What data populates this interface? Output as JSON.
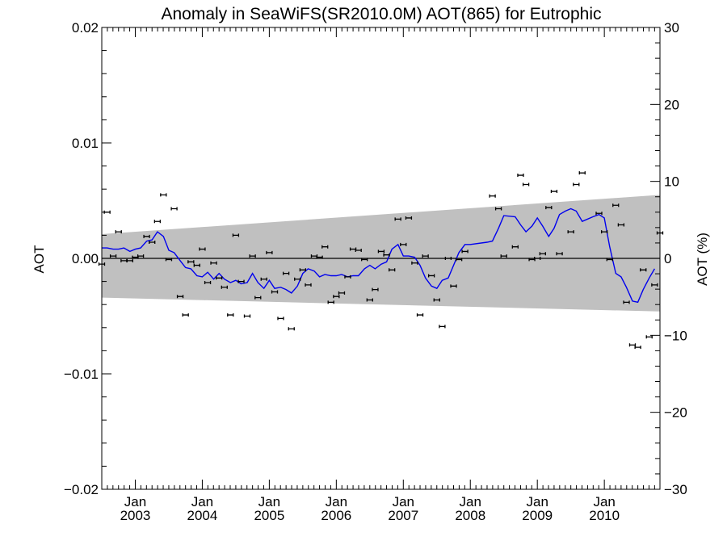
{
  "chart_data": {
    "type": "scatter",
    "title": "Anomaly in SeaWiFS(SR2010.0M) AOT(865) for Eutrophic",
    "ylabel": "AOT",
    "y2label": "AOT (%)",
    "x_tick_labels": [
      {
        "month": "Jan",
        "year": "2003"
      },
      {
        "month": "Jan",
        "year": "2004"
      },
      {
        "month": "Jan",
        "year": "2005"
      },
      {
        "month": "Jan",
        "year": "2006"
      },
      {
        "month": "Jan",
        "year": "2007"
      },
      {
        "month": "Jan",
        "year": "2008"
      },
      {
        "month": "Jan",
        "year": "2009"
      },
      {
        "month": "Jan",
        "year": "2010"
      }
    ],
    "x_tick_years": [
      2003,
      2004,
      2005,
      2006,
      2007,
      2008,
      2009,
      2010
    ],
    "xlim": [
      2002.5,
      2010.83
    ],
    "ylim": [
      -0.02,
      0.02
    ],
    "y_ticks": [
      "0.02",
      "0.01",
      "0.00",
      "−0.01",
      "−0.02"
    ],
    "y2lim": [
      -30,
      30
    ],
    "y2_ticks": [
      "30",
      "20",
      "10",
      "0",
      "−10",
      "−20",
      "−30"
    ],
    "band": {
      "upper": [
        [
          2002.5,
          0.0021
        ],
        [
          2010.83,
          0.0055
        ]
      ],
      "lower": [
        [
          2002.5,
          -0.0034
        ],
        [
          2010.83,
          -0.0046
        ]
      ]
    },
    "zero_line": 0,
    "monthly_anomaly": [
      [
        2002.5,
        -0.0005
      ],
      [
        2002.58,
        0.004
      ],
      [
        2002.67,
        0.0002
      ],
      [
        2002.75,
        0.0023
      ],
      [
        2002.83,
        -0.0002
      ],
      [
        2002.92,
        -0.0002
      ],
      [
        2003.0,
        0.0001
      ],
      [
        2003.08,
        0.0002
      ],
      [
        2003.17,
        0.0019
      ],
      [
        2003.25,
        0.0014
      ],
      [
        2003.33,
        0.0032
      ],
      [
        2003.42,
        0.0055
      ],
      [
        2003.5,
        -0.0001
      ],
      [
        2003.58,
        0.0043
      ],
      [
        2003.67,
        -0.0033
      ],
      [
        2003.75,
        -0.0049
      ],
      [
        2003.83,
        -0.0003
      ],
      [
        2003.92,
        -0.0006
      ],
      [
        2004.0,
        0.0008
      ],
      [
        2004.08,
        -0.0021
      ],
      [
        2004.17,
        -0.0004
      ],
      [
        2004.25,
        -0.0017
      ],
      [
        2004.33,
        -0.0025
      ],
      [
        2004.42,
        -0.0049
      ],
      [
        2004.5,
        0.002
      ],
      [
        2004.58,
        -0.002
      ],
      [
        2004.67,
        -0.005
      ],
      [
        2004.75,
        0.0002
      ],
      [
        2004.83,
        -0.0034
      ],
      [
        2004.92,
        -0.0018
      ],
      [
        2005.0,
        0.0005
      ],
      [
        2005.08,
        -0.0029
      ],
      [
        2005.17,
        -0.0052
      ],
      [
        2005.25,
        -0.0013
      ],
      [
        2005.33,
        -0.0061
      ],
      [
        2005.42,
        -0.0018
      ],
      [
        2005.5,
        -0.001
      ],
      [
        2005.58,
        -0.0023
      ],
      [
        2005.67,
        0.0002
      ],
      [
        2005.75,
        0.0001
      ],
      [
        2005.83,
        0.001
      ],
      [
        2005.92,
        -0.0038
      ],
      [
        2006.0,
        -0.0033
      ],
      [
        2006.08,
        -0.003
      ],
      [
        2006.17,
        -0.0016
      ],
      [
        2006.25,
        0.0008
      ],
      [
        2006.33,
        0.0007
      ],
      [
        2006.42,
        -0.0001
      ],
      [
        2006.5,
        -0.0036
      ],
      [
        2006.58,
        -0.0027
      ],
      [
        2006.67,
        0.0006
      ],
      [
        2006.75,
        0.0003
      ],
      [
        2006.83,
        -0.001
      ],
      [
        2006.92,
        0.0034
      ],
      [
        2007.0,
        0.0012
      ],
      [
        2007.08,
        0.0035
      ],
      [
        2007.17,
        -0.0004
      ],
      [
        2007.25,
        -0.0049
      ],
      [
        2007.33,
        0.0002
      ],
      [
        2007.42,
        -0.0015
      ],
      [
        2007.5,
        -0.0036
      ],
      [
        2007.58,
        -0.0059
      ],
      [
        2007.67,
        0.0
      ],
      [
        2007.75,
        -0.0024
      ],
      [
        2007.83,
        -0.0001
      ],
      [
        2007.92,
        0.0006
      ],
      [
        2008.33,
        0.0054
      ],
      [
        2008.42,
        0.0043
      ],
      [
        2008.5,
        0.0002
      ],
      [
        2008.67,
        0.001
      ],
      [
        2008.75,
        0.0072
      ],
      [
        2008.83,
        0.0064
      ],
      [
        2008.92,
        -0.0001
      ],
      [
        2009.0,
        0.0
      ],
      [
        2009.08,
        0.0004
      ],
      [
        2009.17,
        0.0044
      ],
      [
        2009.25,
        0.0058
      ],
      [
        2009.33,
        0.0004
      ],
      [
        2009.5,
        0.0023
      ],
      [
        2009.58,
        0.0064
      ],
      [
        2009.67,
        0.0074
      ],
      [
        2009.92,
        0.0039
      ],
      [
        2010.0,
        0.0023
      ],
      [
        2010.08,
        -0.0001
      ],
      [
        2010.17,
        0.0046
      ],
      [
        2010.25,
        0.0029
      ],
      [
        2010.33,
        -0.0038
      ],
      [
        2010.42,
        -0.0075
      ],
      [
        2010.5,
        -0.0077
      ],
      [
        2010.58,
        -0.001
      ],
      [
        2010.67,
        -0.0068
      ],
      [
        2010.75,
        -0.0023
      ],
      [
        2010.83,
        0.0022
      ]
    ],
    "running_mean": [
      [
        2002.5,
        0.0009
      ],
      [
        2002.58,
        0.0009
      ],
      [
        2002.67,
        0.0008
      ],
      [
        2002.75,
        0.0008
      ],
      [
        2002.83,
        0.0009
      ],
      [
        2002.92,
        0.0006
      ],
      [
        2003.0,
        0.0008
      ],
      [
        2003.08,
        0.0009
      ],
      [
        2003.17,
        0.0015
      ],
      [
        2003.25,
        0.0016
      ],
      [
        2003.33,
        0.0023
      ],
      [
        2003.42,
        0.0019
      ],
      [
        2003.5,
        0.0007
      ],
      [
        2003.58,
        0.0005
      ],
      [
        2003.67,
        -0.0002
      ],
      [
        2003.75,
        -0.0008
      ],
      [
        2003.83,
        -0.0009
      ],
      [
        2003.92,
        -0.0015
      ],
      [
        2004.0,
        -0.0016
      ],
      [
        2004.08,
        -0.0012
      ],
      [
        2004.17,
        -0.0018
      ],
      [
        2004.25,
        -0.0013
      ],
      [
        2004.33,
        -0.0018
      ],
      [
        2004.42,
        -0.0021
      ],
      [
        2004.5,
        -0.0019
      ],
      [
        2004.58,
        -0.0022
      ],
      [
        2004.67,
        -0.0021
      ],
      [
        2004.75,
        -0.0013
      ],
      [
        2004.83,
        -0.0021
      ],
      [
        2004.92,
        -0.0026
      ],
      [
        2005.0,
        -0.0019
      ],
      [
        2005.08,
        -0.0026
      ],
      [
        2005.17,
        -0.0025
      ],
      [
        2005.25,
        -0.0027
      ],
      [
        2005.33,
        -0.003
      ],
      [
        2005.42,
        -0.0024
      ],
      [
        2005.5,
        -0.0013
      ],
      [
        2005.58,
        -0.0009
      ],
      [
        2005.67,
        -0.0011
      ],
      [
        2005.75,
        -0.0016
      ],
      [
        2005.83,
        -0.0014
      ],
      [
        2005.92,
        -0.0015
      ],
      [
        2006.0,
        -0.0015
      ],
      [
        2006.08,
        -0.0014
      ],
      [
        2006.17,
        -0.0016
      ],
      [
        2006.25,
        -0.0015
      ],
      [
        2006.33,
        -0.0015
      ],
      [
        2006.42,
        -0.0009
      ],
      [
        2006.5,
        -0.0006
      ],
      [
        2006.58,
        -0.0009
      ],
      [
        2006.67,
        -0.0005
      ],
      [
        2006.75,
        -0.0003
      ],
      [
        2006.83,
        0.0008
      ],
      [
        2006.92,
        0.0012
      ],
      [
        2007.0,
        0.0002
      ],
      [
        2007.08,
        0.0002
      ],
      [
        2007.17,
        0.0001
      ],
      [
        2007.25,
        -0.0006
      ],
      [
        2007.33,
        -0.0017
      ],
      [
        2007.42,
        -0.0024
      ],
      [
        2007.5,
        -0.0026
      ],
      [
        2007.58,
        -0.0019
      ],
      [
        2007.67,
        -0.0017
      ],
      [
        2007.75,
        -0.0006
      ],
      [
        2007.83,
        0.0005
      ],
      [
        2007.92,
        0.0012
      ],
      [
        2008.0,
        0.0012
      ],
      [
        2008.25,
        0.0014
      ],
      [
        2008.33,
        0.0015
      ],
      [
        2008.42,
        0.0026
      ],
      [
        2008.5,
        0.0037
      ],
      [
        2008.67,
        0.0036
      ],
      [
        2008.75,
        0.0029
      ],
      [
        2008.83,
        0.0023
      ],
      [
        2008.92,
        0.0028
      ],
      [
        2009.0,
        0.0035
      ],
      [
        2009.08,
        0.0028
      ],
      [
        2009.17,
        0.0019
      ],
      [
        2009.25,
        0.0026
      ],
      [
        2009.33,
        0.0038
      ],
      [
        2009.42,
        0.0041
      ],
      [
        2009.5,
        0.0043
      ],
      [
        2009.58,
        0.0041
      ],
      [
        2009.67,
        0.0032
      ],
      [
        2009.83,
        0.0036
      ],
      [
        2009.92,
        0.0038
      ],
      [
        2010.0,
        0.0035
      ],
      [
        2010.08,
        0.001
      ],
      [
        2010.17,
        -0.0013
      ],
      [
        2010.25,
        -0.0016
      ],
      [
        2010.33,
        -0.0025
      ],
      [
        2010.42,
        -0.0037
      ],
      [
        2010.5,
        -0.0038
      ],
      [
        2010.58,
        -0.0027
      ],
      [
        2010.67,
        -0.0017
      ],
      [
        2010.75,
        -0.0009
      ]
    ],
    "grid": false,
    "legend": "none",
    "colors": {
      "band": "#c0c0c0",
      "mean_line": "#0000ee",
      "points": "#000000",
      "axes": "#000000"
    }
  }
}
